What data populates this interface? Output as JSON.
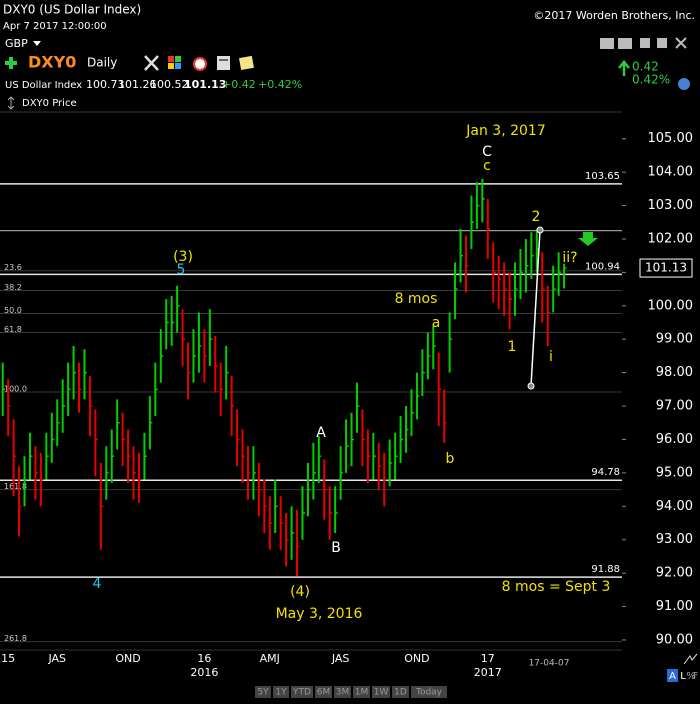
{
  "header": {
    "symbol_title": "DXY0 (US Dollar Index)",
    "datetime": "Apr 7 2017 12:00:00",
    "copyright": "©2017 Worden Brothers, Inc.",
    "currency": "GBP",
    "symbol": "DXY0",
    "period": "Daily",
    "name": "US Dollar Index",
    "open": "100.73",
    "high": "101.26",
    "low": "100.52",
    "last": "101.13",
    "change": "+0.42",
    "change_pct": "+0.42%",
    "plot_label": "DXY0 Price",
    "side_change": "0.42",
    "side_change_pct": "0.42%"
  },
  "chart_data": {
    "type": "hlc",
    "categories": [
      null,
      "15",
      null,
      null,
      null,
      null,
      null,
      null,
      null,
      null,
      "JAS",
      null,
      null,
      null,
      null,
      null,
      null,
      null,
      null,
      null,
      null,
      null,
      null,
      "OND",
      null,
      null,
      null,
      null,
      null,
      null,
      null,
      null,
      null,
      null,
      null,
      null,
      null,
      "16",
      null,
      null,
      null,
      null,
      null,
      null,
      null,
      null,
      null,
      null,
      null,
      "AMJ",
      null,
      null,
      null,
      null,
      null,
      null,
      null,
      null,
      null,
      null,
      null,
      null,
      "JAS",
      null,
      null,
      null,
      null,
      null,
      null,
      null,
      null,
      null,
      null,
      null,
      null,
      null,
      "OND",
      null,
      null,
      null,
      null,
      null,
      null,
      null,
      null,
      null,
      null,
      null,
      null,
      "17",
      null,
      null,
      null,
      null,
      null,
      null,
      null,
      null,
      null,
      null,
      null,
      null,
      null,
      null
    ],
    "categories_years": [
      null,
      null,
      null,
      null,
      null,
      null,
      null,
      null,
      null,
      null,
      null,
      null,
      null,
      null,
      null,
      null,
      null,
      null,
      null,
      null,
      null,
      null,
      null,
      null,
      null,
      null,
      null,
      null,
      null,
      null,
      null,
      null,
      null,
      null,
      null,
      null,
      null,
      "2016",
      null,
      null,
      null,
      null,
      null,
      null,
      null,
      null,
      null,
      null,
      null,
      null,
      null,
      null,
      null,
      null,
      null,
      null,
      null,
      null,
      null,
      null,
      null,
      null,
      null,
      null,
      null,
      null,
      null,
      null,
      null,
      null,
      null,
      null,
      null,
      null,
      null,
      null,
      null,
      null,
      null,
      null,
      null,
      null,
      null,
      null,
      null,
      null,
      null,
      null,
      null,
      "2017",
      null,
      null,
      null,
      null,
      null,
      null,
      null,
      null,
      null,
      null,
      null,
      null,
      null,
      null
    ],
    "high": [
      98.3,
      97.8,
      96.6,
      95.2,
      95.5,
      96.2,
      95.8,
      95.6,
      96.2,
      96.8,
      97.2,
      97.8,
      98.3,
      98.8,
      98.3,
      98.7,
      97.9,
      96.9,
      95.3,
      95.8,
      96.3,
      97.2,
      96.8,
      96.3,
      95.8,
      95.6,
      96.2,
      97.3,
      98.3,
      99.3,
      100.2,
      100.3,
      100.6,
      99.9,
      98.9,
      99.3,
      99.8,
      99.3,
      99.9,
      99.1,
      98.3,
      98.8,
      97.9,
      96.9,
      96.3,
      95.8,
      95.8,
      95.3,
      94.8,
      94.3,
      94.8,
      94.3,
      93.8,
      94,
      93.9,
      94.6,
      95.3,
      95.9,
      96.1,
      95.4,
      94.6,
      94.6,
      95.8,
      96.6,
      96.8,
      97.7,
      96.9,
      96.3,
      96.2,
      95.9,
      95.6,
      96,
      96.2,
      96.7,
      97,
      97.5,
      98,
      98.7,
      99.2,
      99.4,
      98.6,
      97.5,
      99.8,
      101.3,
      102.3,
      102.1,
      103.3,
      103.7,
      103.8,
      103.2,
      101.9,
      101.5,
      101.3,
      101,
      101.3,
      101.7,
      102,
      102.2,
      102.3,
      101.6,
      100.6,
      101.2,
      101.6,
      101.26
    ],
    "low": [
      96.7,
      96.1,
      94.3,
      93.1,
      94,
      94.8,
      94.2,
      94,
      94.8,
      95.3,
      95.8,
      96.2,
      96.7,
      97.2,
      96.8,
      97.2,
      96.1,
      94.9,
      92.7,
      94.2,
      94.7,
      95.7,
      95.2,
      94.7,
      94.2,
      94.1,
      94.8,
      95.7,
      96.7,
      97.7,
      98.7,
      98.8,
      99.2,
      98.2,
      97.2,
      97.7,
      98,
      97.7,
      98.2,
      97.4,
      96.7,
      97.2,
      96.1,
      95.2,
      94.7,
      94.2,
      94.2,
      93.7,
      93.2,
      92.7,
      93.2,
      92.7,
      92.2,
      92.4,
      91.9,
      93,
      93.7,
      94.2,
      94.7,
      93.6,
      93,
      93.2,
      94.2,
      95,
      95.2,
      96.2,
      95.2,
      94.7,
      94.8,
      94.5,
      94,
      94.6,
      94.8,
      95.3,
      95.6,
      96.1,
      96.6,
      97.3,
      97.8,
      98.1,
      96.4,
      95.9,
      98,
      99.6,
      100.7,
      100.4,
      101.7,
      102.3,
      102.5,
      101.4,
      100.1,
      99.9,
      99.7,
      99.3,
      99.7,
      100.2,
      100.4,
      100.8,
      101,
      99.5,
      98.8,
      99.8,
      100.3,
      100.52
    ],
    "close": [
      97.5,
      97,
      95.5,
      94,
      94.8,
      95.5,
      95,
      94.8,
      95.5,
      96,
      96.5,
      97,
      97.5,
      98,
      97.5,
      98,
      97,
      96,
      94,
      95,
      95.5,
      96.5,
      96,
      95.5,
      95,
      94.8,
      95.5,
      96.5,
      97.5,
      98.5,
      99.5,
      99.5,
      100,
      99,
      98,
      98.5,
      98.8,
      98.5,
      99,
      98.2,
      97.5,
      98,
      97,
      96,
      95.5,
      95,
      95,
      94.5,
      94,
      93.5,
      94,
      93.5,
      93,
      93.2,
      92.8,
      93.8,
      94.5,
      95,
      95.5,
      94.5,
      93.8,
      93.8,
      95,
      95.8,
      96,
      97,
      96,
      95.5,
      95.5,
      95.2,
      94.8,
      95.3,
      95.5,
      96,
      96.3,
      96.8,
      97.3,
      98,
      98.5,
      98.8,
      97.5,
      96.5,
      99,
      100.5,
      101.5,
      101.2,
      102.5,
      103,
      103.2,
      102.3,
      101,
      100.8,
      100.5,
      100.2,
      100.5,
      101,
      101.2,
      101.5,
      101.7,
      100.5,
      99.8,
      100.5,
      101,
      101.13
    ],
    "up_color": "#00d000",
    "down_color": "#e80000",
    "ylim": [
      89.7,
      105.8
    ],
    "yticks": [
      {
        "value": 90,
        "label": "90.00"
      },
      {
        "value": 91,
        "label": "91.00"
      },
      {
        "value": 92,
        "label": "92.00"
      },
      {
        "value": 93,
        "label": "93.00"
      },
      {
        "value": 94,
        "label": "94.00"
      },
      {
        "value": 95,
        "label": "95.00"
      },
      {
        "value": 96,
        "label": "96.00"
      },
      {
        "value": 97,
        "label": "97.00"
      },
      {
        "value": 98,
        "label": "98.00"
      },
      {
        "value": 99,
        "label": "99.00"
      },
      {
        "value": 100,
        "label": "100.00"
      },
      {
        "value": 101,
        "label": "101.00"
      },
      {
        "value": 102,
        "label": "102.00"
      },
      {
        "value": 103,
        "label": "103.00"
      },
      {
        "value": 104,
        "label": "104.00"
      },
      {
        "value": 105,
        "label": "105.00"
      }
    ],
    "levels": [
      103.65,
      100.94,
      94.78,
      91.88
    ],
    "fib_levels": [
      {
        "value": 101.05,
        "label": "23.6"
      },
      {
        "value": 100.46,
        "label": "38.2"
      },
      {
        "value": 99.77,
        "label": "50.0"
      },
      {
        "value": 99.2,
        "label": "61.8"
      },
      {
        "value": 97.42,
        "label": "100.0"
      },
      {
        "value": 94.5,
        "label": "161.8"
      },
      {
        "value": 89.95,
        "label": "261.8"
      }
    ],
    "resistance_line": 102.25,
    "last_price": 101.13,
    "cursor_date": "17-04-07",
    "annotations": [
      "Jan 3, 2017",
      "C",
      "c",
      "2",
      "ii?",
      "(3)",
      "5",
      "8 mos",
      "a",
      "1",
      "i",
      "A",
      "b",
      "B",
      "(4)",
      "May 3, 2016",
      "4",
      "8 mos = Sept 3"
    ]
  },
  "footer": {
    "range_buttons": [
      "5Y",
      "1Y",
      "YTD",
      "6M",
      "3M",
      "1M",
      "1W",
      "1D",
      "Today"
    ],
    "scale_buttons": [
      "A",
      "L",
      "%",
      "F"
    ]
  }
}
